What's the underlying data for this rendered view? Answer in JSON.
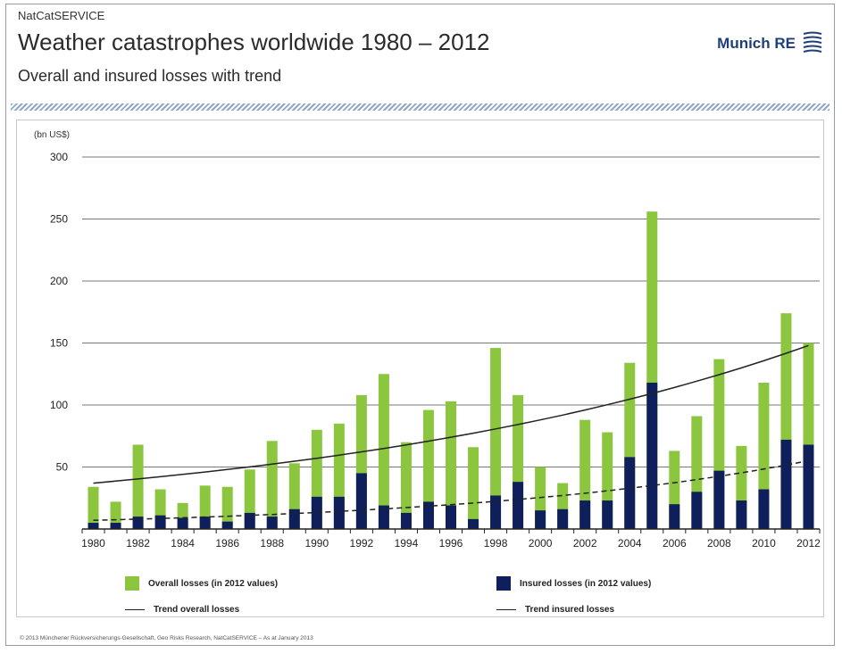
{
  "header": {
    "eyebrow": "NatCatSERVICE",
    "title": "Weather catastrophes worldwide 1980 – 2012",
    "subtitle": "Overall and insured losses with trend",
    "logo_text": "Munich RE"
  },
  "footer": {
    "text": "© 2013 Münchener Rückversicherungs-Gesellschaft, Geo Risks Research, NatCatSERVICE – As at January 2013"
  },
  "colors": {
    "overall": "#8cc63f",
    "insured": "#0e1f5b",
    "trend": "#222222",
    "grid": "#777777",
    "logo": "#1f3f7a"
  },
  "chart_data": {
    "type": "bar",
    "stacked": "overlay",
    "title": "Weather catastrophes worldwide 1980 – 2012",
    "subtitle": "Overall and insured losses with trend",
    "ylabel": "(bn US$)",
    "xlabel": "",
    "ylim": [
      0,
      300
    ],
    "yticks": [
      50,
      100,
      150,
      200,
      250,
      300
    ],
    "grid": true,
    "x": [
      1980,
      1981,
      1982,
      1983,
      1984,
      1985,
      1986,
      1987,
      1988,
      1989,
      1990,
      1991,
      1992,
      1993,
      1994,
      1995,
      1996,
      1997,
      1998,
      1999,
      2000,
      2001,
      2002,
      2003,
      2004,
      2005,
      2006,
      2007,
      2008,
      2009,
      2010,
      2011,
      2012
    ],
    "xtick_labels": [
      "1980",
      "1982",
      "1984",
      "1986",
      "1988",
      "1990",
      "1992",
      "1994",
      "1996",
      "1998",
      "2000",
      "2002",
      "2004",
      "2006",
      "2008",
      "2010",
      "2012"
    ],
    "series": [
      {
        "name": "Overall losses (in 2012 values)",
        "values": [
          34,
          22,
          68,
          32,
          21,
          35,
          34,
          48,
          71,
          53,
          80,
          85,
          108,
          125,
          70,
          96,
          103,
          66,
          146,
          108,
          50,
          37,
          88,
          78,
          134,
          256,
          63,
          91,
          137,
          67,
          118,
          174,
          150
        ]
      },
      {
        "name": "Insured losses (in 2012 values)",
        "values": [
          5,
          5,
          10,
          11,
          9,
          10,
          6,
          13,
          10,
          16,
          26,
          26,
          45,
          19,
          13,
          22,
          19,
          8,
          27,
          38,
          15,
          16,
          23,
          23,
          58,
          118,
          20,
          30,
          47,
          23,
          32,
          72,
          68
        ]
      }
    ],
    "trends": [
      {
        "name": "Trend overall losses",
        "style": "solid",
        "start": 37,
        "end": 148
      },
      {
        "name": "Trend insured losses",
        "style": "dashed",
        "start": 7,
        "end": 55
      }
    ],
    "legend": {
      "placement": "bottom",
      "items": [
        {
          "label": "Overall losses (in 2012 values)",
          "kind": "swatch",
          "color": "#8cc63f"
        },
        {
          "label": "Insured losses (in 2012 values)",
          "kind": "swatch",
          "color": "#0e1f5b"
        },
        {
          "label": "Trend overall losses",
          "kind": "line"
        },
        {
          "label": "Trend insured losses",
          "kind": "line"
        }
      ]
    }
  }
}
